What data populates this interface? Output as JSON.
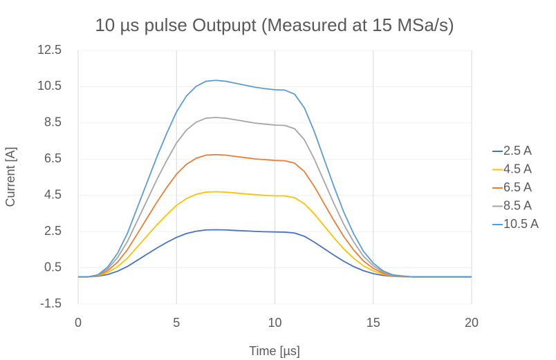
{
  "chart_data": {
    "type": "line",
    "title": "10 µs pulse Outpupt (Measured at 15 MSa/s)",
    "x_label": "Time [µs]",
    "y_label": "Current [A]",
    "x": [
      0,
      0.5,
      1,
      1.5,
      2,
      2.5,
      3,
      3.5,
      4,
      4.5,
      5,
      5.5,
      6,
      6.5,
      7,
      7.5,
      8,
      8.5,
      9,
      9.5,
      10,
      10.5,
      11,
      11.5,
      12,
      12.5,
      13,
      13.5,
      14,
      14.5,
      15,
      15.5,
      16,
      16.5,
      17,
      17.5,
      18,
      18.5,
      19,
      19.5,
      20
    ],
    "series": [
      {
        "name": "2.5 A",
        "color": "#4472c4",
        "values": [
          0,
          0,
          0.03,
          0.13,
          0.31,
          0.57,
          0.91,
          1.25,
          1.59,
          1.9,
          2.18,
          2.39,
          2.52,
          2.59,
          2.6,
          2.59,
          2.56,
          2.54,
          2.51,
          2.49,
          2.48,
          2.47,
          2.42,
          2.24,
          1.92,
          1.56,
          1.2,
          0.86,
          0.57,
          0.34,
          0.18,
          0.08,
          0.03,
          0.01,
          0,
          0,
          0,
          0,
          0,
          0,
          0
        ]
      },
      {
        "name": "4.5 A",
        "color": "#ffc000",
        "values": [
          0,
          0,
          0.05,
          0.24,
          0.56,
          1.03,
          1.65,
          2.26,
          2.87,
          3.43,
          3.95,
          4.32,
          4.56,
          4.68,
          4.7,
          4.68,
          4.63,
          4.58,
          4.54,
          4.5,
          4.47,
          4.47,
          4.37,
          4.04,
          3.48,
          2.82,
          2.16,
          1.55,
          1.03,
          0.61,
          0.33,
          0.14,
          0.05,
          0.02,
          0,
          0,
          0,
          0,
          0,
          0,
          0
        ]
      },
      {
        "name": "6.5 A",
        "color": "#ed7d31",
        "values": [
          0,
          0,
          0.07,
          0.34,
          0.81,
          1.49,
          2.36,
          3.24,
          4.12,
          4.93,
          5.67,
          6.21,
          6.55,
          6.72,
          6.75,
          6.72,
          6.65,
          6.58,
          6.51,
          6.47,
          6.43,
          6.41,
          6.28,
          5.81,
          5.0,
          4.05,
          3.11,
          2.23,
          1.49,
          0.88,
          0.47,
          0.2,
          0.07,
          0.03,
          0,
          0,
          0,
          0,
          0,
          0,
          0
        ]
      },
      {
        "name": "8.5 A",
        "color": "#a5a5a5",
        "values": [
          0,
          0,
          0.09,
          0.44,
          1.06,
          1.94,
          3.08,
          4.22,
          5.37,
          6.42,
          7.39,
          8.1,
          8.54,
          8.76,
          8.8,
          8.76,
          8.67,
          8.58,
          8.49,
          8.43,
          8.38,
          8.36,
          8.18,
          7.57,
          6.51,
          5.28,
          4.05,
          2.9,
          1.94,
          1.14,
          0.62,
          0.26,
          0.09,
          0.04,
          0,
          0,
          0,
          0,
          0,
          0,
          0
        ]
      },
      {
        "name": "10.5 A",
        "color": "#5b9bd5",
        "values": [
          0,
          0,
          0.11,
          0.54,
          1.3,
          2.39,
          3.8,
          5.21,
          6.62,
          7.92,
          9.11,
          9.98,
          10.52,
          10.8,
          10.85,
          10.8,
          10.69,
          10.58,
          10.47,
          10.39,
          10.33,
          10.31,
          10.09,
          9.33,
          8.03,
          6.51,
          4.99,
          3.58,
          2.39,
          1.41,
          0.76,
          0.33,
          0.11,
          0.05,
          0,
          0,
          0,
          0,
          0,
          0,
          0
        ]
      }
    ],
    "xlim": [
      0,
      20
    ],
    "xticks": [
      0,
      5,
      10,
      15,
      20
    ],
    "ylim": [
      -1.5,
      12.5
    ],
    "yticks": [
      -1.5,
      0.5,
      2.5,
      4.5,
      6.5,
      8.5,
      10.5,
      12.5
    ],
    "grid": true,
    "legend": "right"
  }
}
